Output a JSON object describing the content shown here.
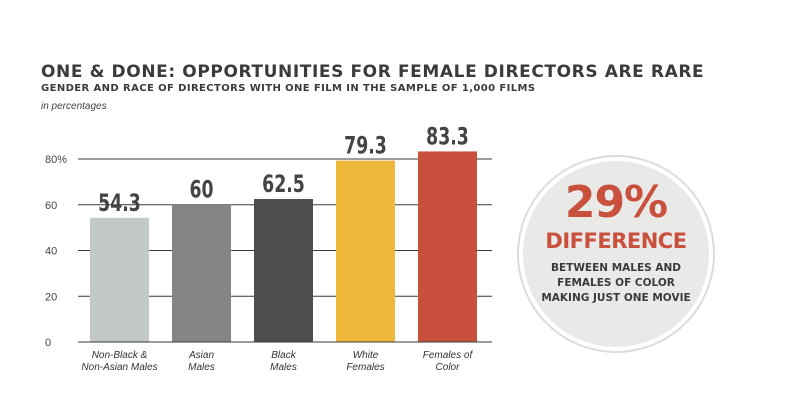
{
  "chart_data": {
    "type": "bar",
    "title": "ONE & DONE: OPPORTUNITIES FOR FEMALE DIRECTORS ARE RARE",
    "subtitle": "GENDER AND RACE OF DIRECTORS WITH ONE FILM IN THE SAMPLE OF 1,000 FILMS",
    "note": "in percentages",
    "categories": [
      [
        "Non-Black &",
        "Non-Asian Males"
      ],
      [
        "Asian",
        "Males"
      ],
      [
        "Black",
        "Males"
      ],
      [
        "White",
        "Females"
      ],
      [
        "Females of",
        "Color"
      ]
    ],
    "values": [
      54.3,
      60,
      62.5,
      79.3,
      83.3
    ],
    "data_labels": [
      "54.3",
      "60",
      "62.5",
      "79.3",
      "83.3"
    ],
    "colors": [
      "#c3c9c8",
      "#868583",
      "#4f4d4b",
      "#f0b83a",
      "#c8503c"
    ],
    "yticks": [
      0,
      20,
      40,
      60,
      80
    ],
    "ytick_labels": [
      "0",
      "20",
      "40",
      "60",
      "80%"
    ],
    "ylim": [
      0,
      80
    ],
    "grid": true
  },
  "callout": {
    "value": "29%",
    "label": "DIFFERENCE",
    "description": "BETWEEN MALES AND FEMALES OF COLOR MAKING JUST ONE MOVIE"
  }
}
